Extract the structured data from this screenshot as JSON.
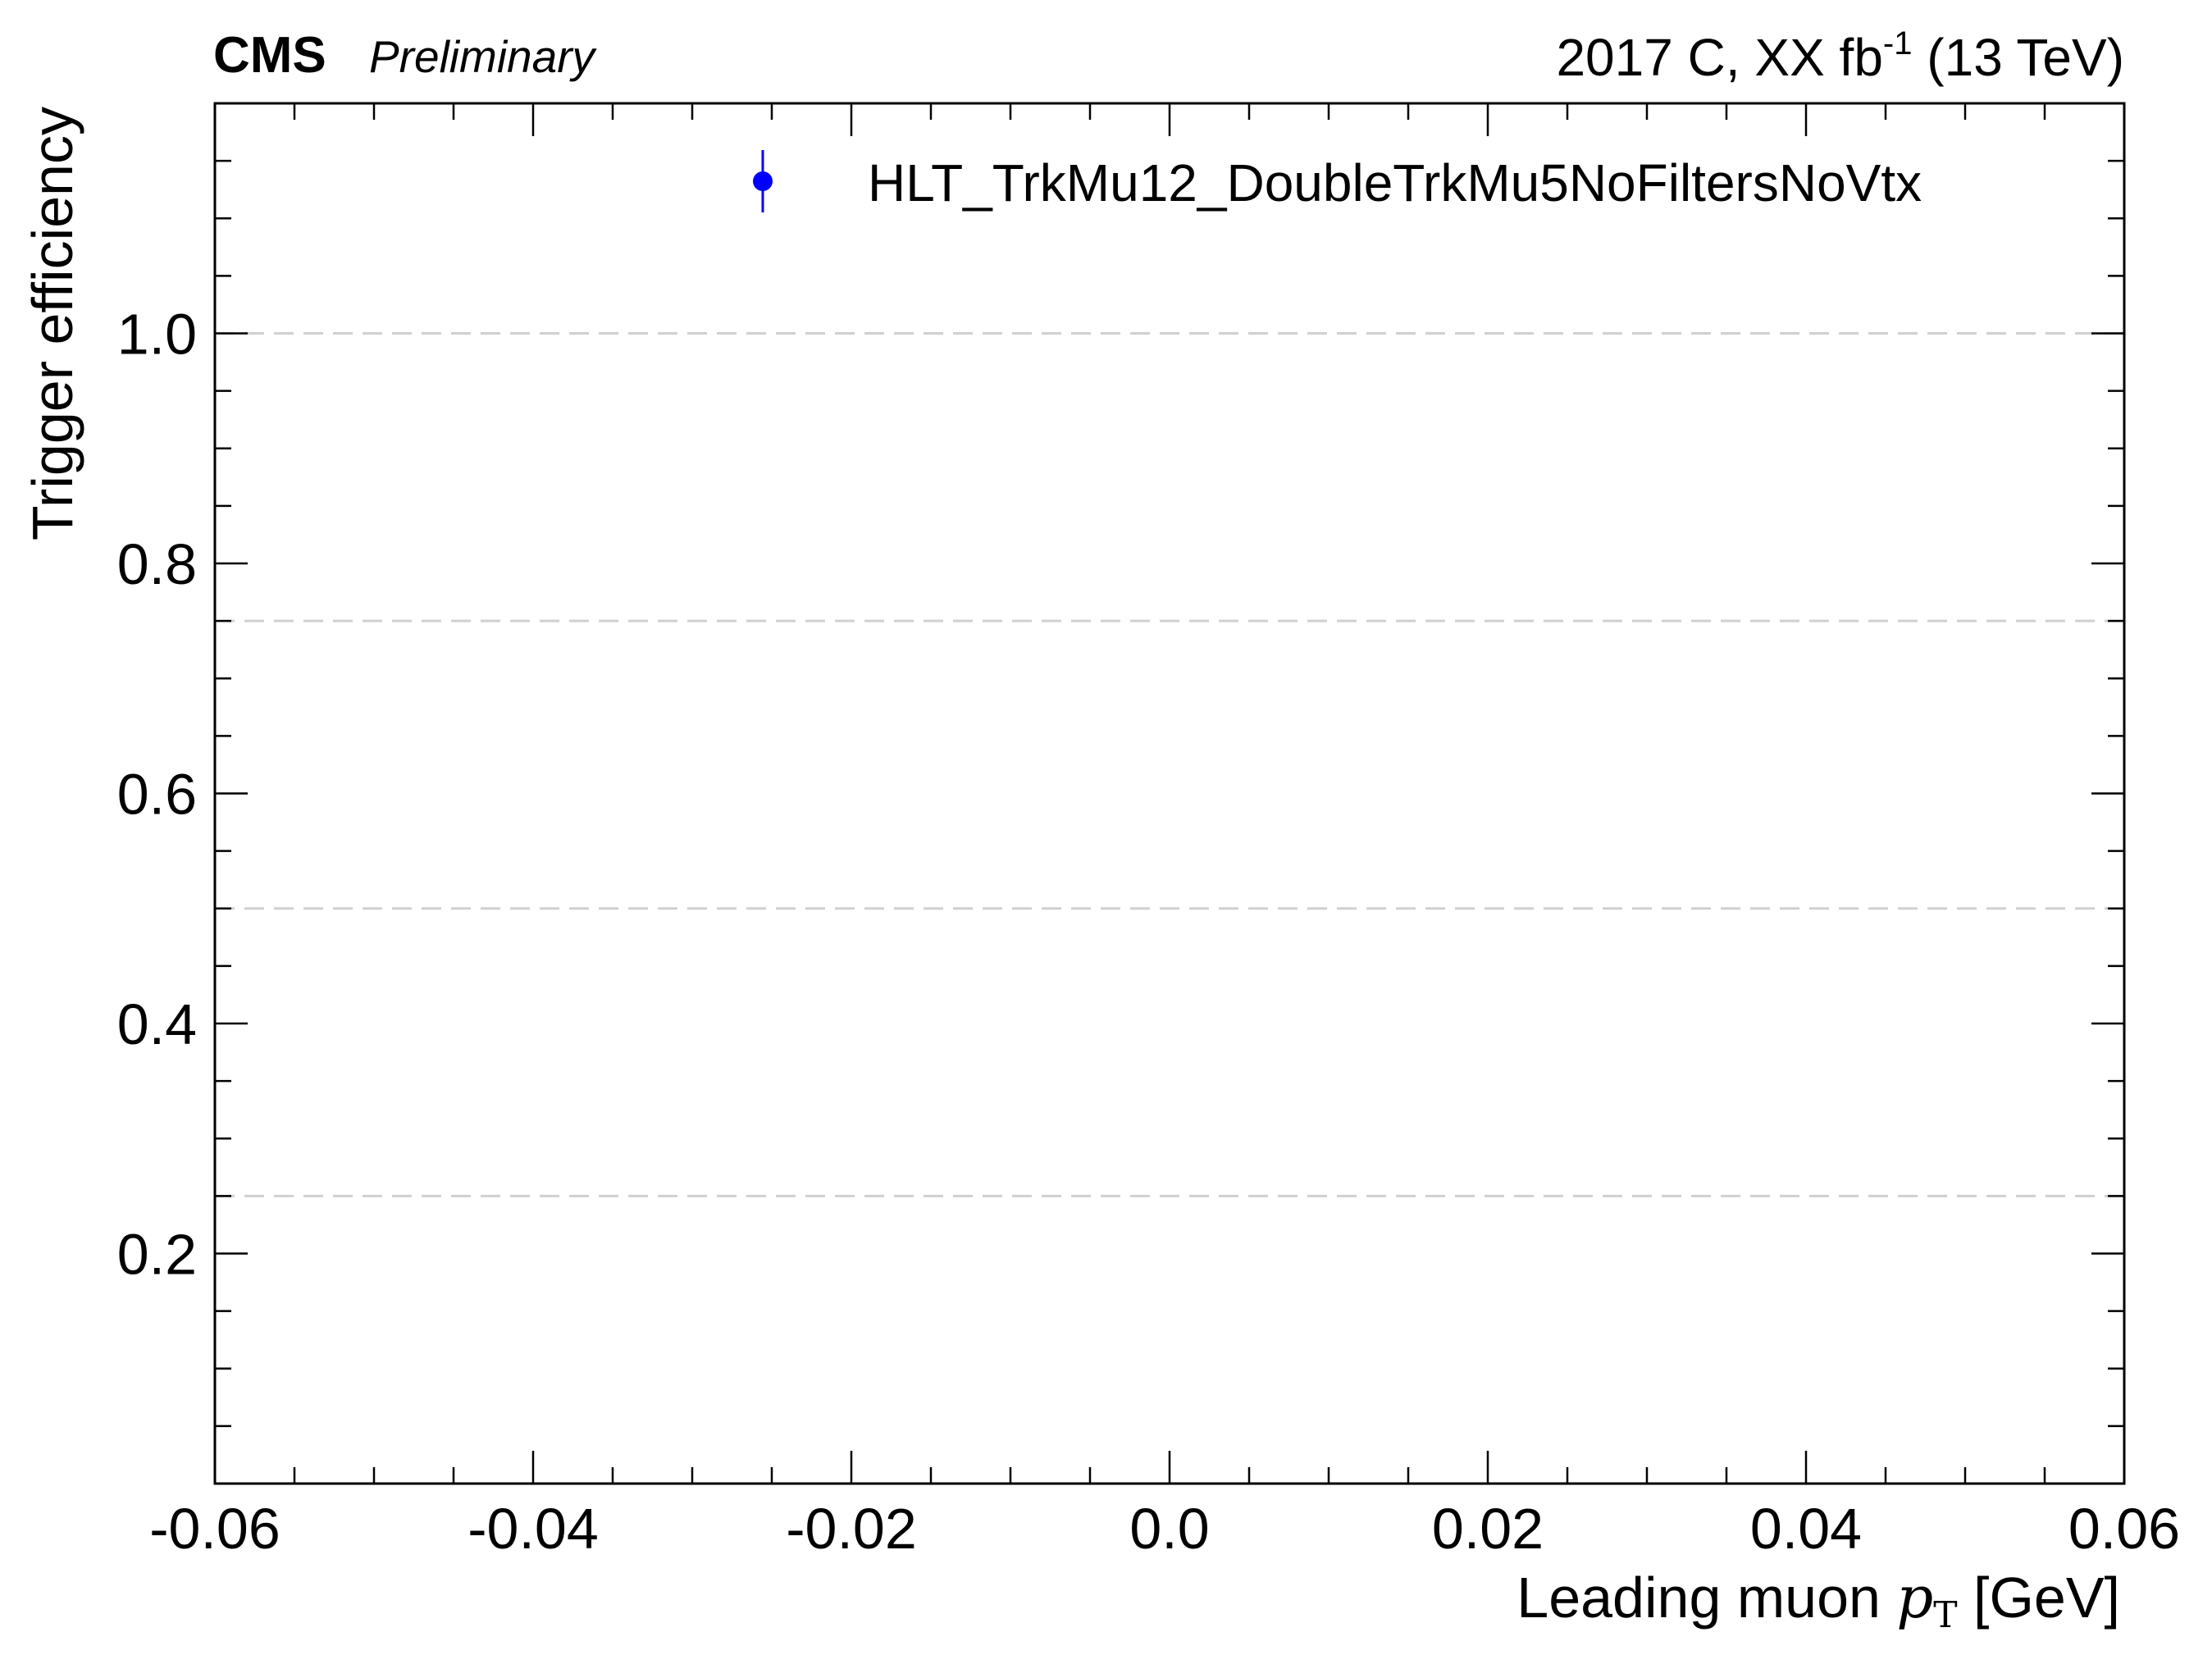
{
  "header": {
    "experiment": "CMS",
    "status": "Preliminary",
    "lumi_prefix": "2017 C, XX fb",
    "lumi_exponent": "-1",
    "lumi_suffix": " (13 TeV)"
  },
  "chart_data": {
    "type": "scatter",
    "xlabel_text": "Leading muon ",
    "xlabel_var": "p",
    "xlabel_sub": "T",
    "xlabel_unit": " [GeV]",
    "ylabel": "Trigger efficiency",
    "xlim": [
      -0.06,
      0.06
    ],
    "ylim": [
      0.0,
      1.2
    ],
    "x_ticks": [
      -0.06,
      -0.04,
      -0.02,
      0.0,
      0.02,
      0.04,
      0.06
    ],
    "x_tick_labels": [
      "-0.06",
      "-0.04",
      "-0.02",
      "0.0",
      "0.02",
      "0.04",
      "0.06"
    ],
    "y_ticks": [
      0.2,
      0.4,
      0.6,
      0.8,
      1.0
    ],
    "y_tick_labels": [
      "0.2",
      "0.4",
      "0.6",
      "0.8",
      "1.0"
    ],
    "reference_lines_y": [
      0.25,
      0.5,
      0.75,
      1.0
    ],
    "reference_line_color": "#d0d0d0",
    "series": [
      {
        "name": "HLT_TrkMu12_DoubleTrkMu5NoFiltersNoVtx",
        "color": "#0000ff",
        "points": []
      }
    ],
    "legend_position": "top-right",
    "grid": false
  }
}
